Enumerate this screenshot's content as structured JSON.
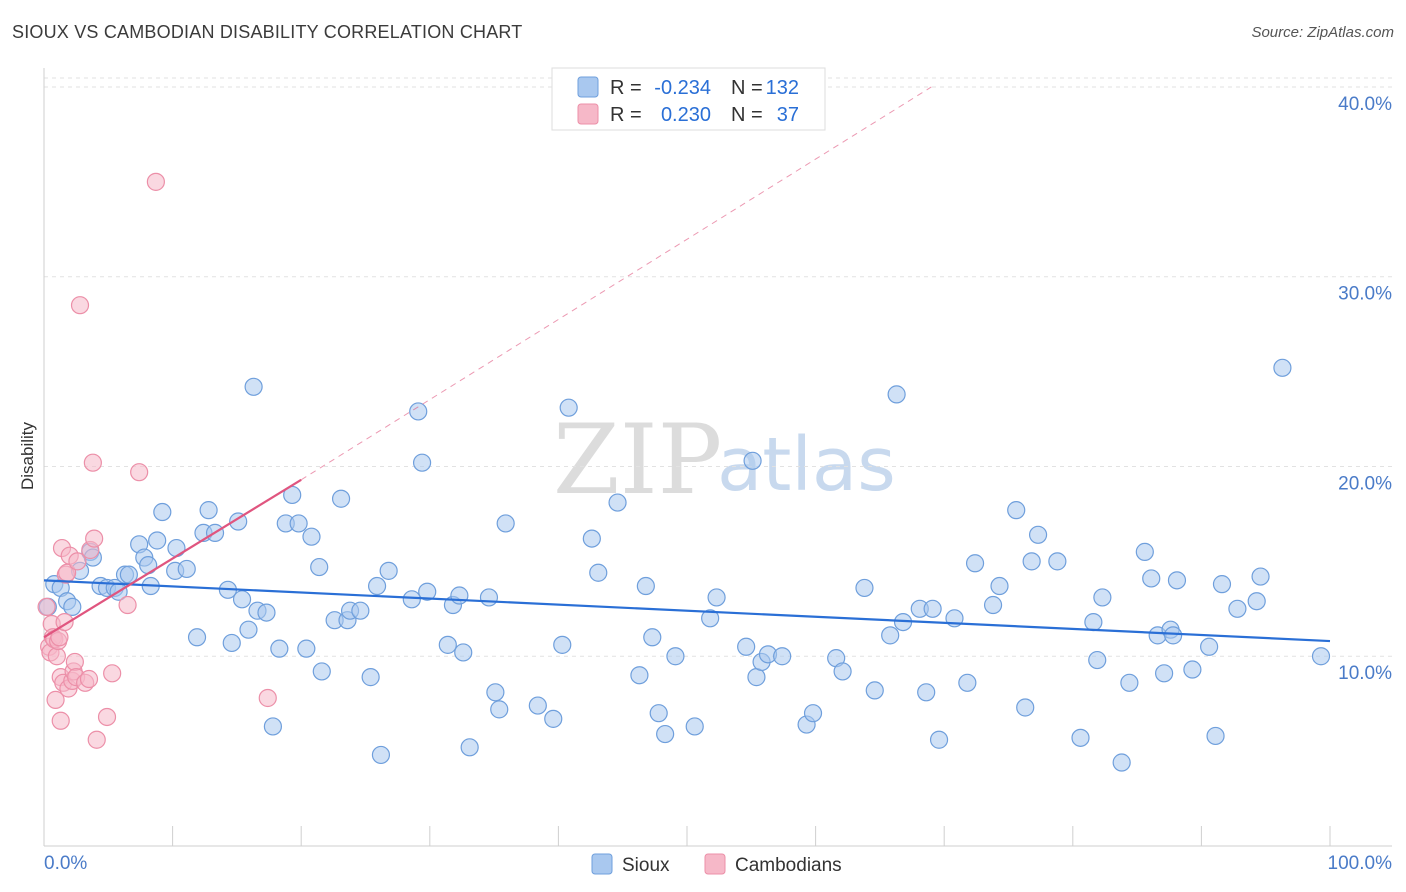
{
  "title": "SIOUX VS CAMBODIAN DISABILITY CORRELATION CHART",
  "source": "Source: ZipAtlas.com",
  "watermark": {
    "zip": "ZIP",
    "atlas": "atlas"
  },
  "legend": {
    "rows": [
      {
        "r_label": "R =",
        "r_value": "-0.234",
        "n_label": "N =",
        "n_value": "132"
      },
      {
        "r_label": "R =",
        "r_value": "0.230",
        "n_label": "N =",
        "n_value": "37"
      }
    ]
  },
  "bottom_legend": {
    "sioux": "Sioux",
    "cambodians": "Cambodians"
  },
  "colors": {
    "sioux_fill": "#a9c8ef",
    "sioux_stroke": "#6f9fdc",
    "sioux_line": "#2a6fd6",
    "camb_fill": "#f6b8c8",
    "camb_stroke": "#ec8fa8",
    "camb_line": "#e0557f"
  },
  "chart_data": {
    "type": "scatter",
    "title": "SIOUX VS CAMBODIAN DISABILITY CORRELATION CHART",
    "xlabel": "",
    "ylabel": "Disability",
    "xlim": [
      0,
      100
    ],
    "ylim": [
      0,
      41
    ],
    "x_tick_labels": [
      "0.0%",
      "100.0%"
    ],
    "y_ticks": [
      10,
      20,
      30,
      40
    ],
    "y_tick_labels": [
      "10.0%",
      "20.0%",
      "30.0%",
      "40.0%"
    ],
    "series": [
      {
        "name": "Sioux",
        "r": -0.234,
        "n": 132,
        "trend": {
          "x": [
            0,
            100
          ],
          "y": [
            14.0,
            10.8
          ]
        },
        "points": [
          [
            0.3,
            12.6
          ],
          [
            0.8,
            13.8
          ],
          [
            1.3,
            13.6
          ],
          [
            1.8,
            12.9
          ],
          [
            2.2,
            12.6
          ],
          [
            2.8,
            14.5
          ],
          [
            3.6,
            15.5
          ],
          [
            3.8,
            15.2
          ],
          [
            4.4,
            13.7
          ],
          [
            4.9,
            13.6
          ],
          [
            5.5,
            13.6
          ],
          [
            5.8,
            13.4
          ],
          [
            6.3,
            14.3
          ],
          [
            6.6,
            14.3
          ],
          [
            7.4,
            15.9
          ],
          [
            7.8,
            15.2
          ],
          [
            8.1,
            14.8
          ],
          [
            8.3,
            13.7
          ],
          [
            8.8,
            16.1
          ],
          [
            9.2,
            17.6
          ],
          [
            10.2,
            14.5
          ],
          [
            10.3,
            15.7
          ],
          [
            11.1,
            14.6
          ],
          [
            11.9,
            11.0
          ],
          [
            12.4,
            16.5
          ],
          [
            12.8,
            17.7
          ],
          [
            13.3,
            16.5
          ],
          [
            14.3,
            13.5
          ],
          [
            14.6,
            10.7
          ],
          [
            15.1,
            17.1
          ],
          [
            15.4,
            13.0
          ],
          [
            15.9,
            11.4
          ],
          [
            16.3,
            24.2
          ],
          [
            16.6,
            12.4
          ],
          [
            17.3,
            12.3
          ],
          [
            17.8,
            6.3
          ],
          [
            18.3,
            10.4
          ],
          [
            18.8,
            17.0
          ],
          [
            19.3,
            18.5
          ],
          [
            19.8,
            17.0
          ],
          [
            20.4,
            10.4
          ],
          [
            20.8,
            16.3
          ],
          [
            21.4,
            14.7
          ],
          [
            21.6,
            9.2
          ],
          [
            22.6,
            11.9
          ],
          [
            23.1,
            18.3
          ],
          [
            23.6,
            11.9
          ],
          [
            23.8,
            12.4
          ],
          [
            24.6,
            12.4
          ],
          [
            25.4,
            8.9
          ],
          [
            25.9,
            13.7
          ],
          [
            26.2,
            4.8
          ],
          [
            26.8,
            14.5
          ],
          [
            28.6,
            13.0
          ],
          [
            29.1,
            22.9
          ],
          [
            29.4,
            20.2
          ],
          [
            29.8,
            13.4
          ],
          [
            31.4,
            10.6
          ],
          [
            31.8,
            12.7
          ],
          [
            32.3,
            13.2
          ],
          [
            32.6,
            10.2
          ],
          [
            33.1,
            5.2
          ],
          [
            34.6,
            13.1
          ],
          [
            35.1,
            8.1
          ],
          [
            35.4,
            7.2
          ],
          [
            35.9,
            17.0
          ],
          [
            38.4,
            7.4
          ],
          [
            39.6,
            6.7
          ],
          [
            40.3,
            10.6
          ],
          [
            40.8,
            23.1
          ],
          [
            42.6,
            16.2
          ],
          [
            43.1,
            14.4
          ],
          [
            44.6,
            18.1
          ],
          [
            46.3,
            9.0
          ],
          [
            46.8,
            13.7
          ],
          [
            47.3,
            11.0
          ],
          [
            47.8,
            7.0
          ],
          [
            48.3,
            5.9
          ],
          [
            49.1,
            10.0
          ],
          [
            50.6,
            6.3
          ],
          [
            51.8,
            12.0
          ],
          [
            52.3,
            13.1
          ],
          [
            54.6,
            10.5
          ],
          [
            55.1,
            20.3
          ],
          [
            55.4,
            8.9
          ],
          [
            55.8,
            9.7
          ],
          [
            56.3,
            10.1
          ],
          [
            57.4,
            10.0
          ],
          [
            59.3,
            6.4
          ],
          [
            59.8,
            7.0
          ],
          [
            61.6,
            9.9
          ],
          [
            62.1,
            9.2
          ],
          [
            63.8,
            13.6
          ],
          [
            64.6,
            8.2
          ],
          [
            65.8,
            11.1
          ],
          [
            66.3,
            23.8
          ],
          [
            66.8,
            11.8
          ],
          [
            68.1,
            12.5
          ],
          [
            68.6,
            8.1
          ],
          [
            69.1,
            12.5
          ],
          [
            69.6,
            5.6
          ],
          [
            70.8,
            12.0
          ],
          [
            71.8,
            8.6
          ],
          [
            72.4,
            14.9
          ],
          [
            73.8,
            12.7
          ],
          [
            74.3,
            13.7
          ],
          [
            75.6,
            17.7
          ],
          [
            76.3,
            7.3
          ],
          [
            76.8,
            15.0
          ],
          [
            77.3,
            16.4
          ],
          [
            78.8,
            15.0
          ],
          [
            80.6,
            5.7
          ],
          [
            81.6,
            11.8
          ],
          [
            81.9,
            9.8
          ],
          [
            82.3,
            13.1
          ],
          [
            83.8,
            4.4
          ],
          [
            84.4,
            8.6
          ],
          [
            85.6,
            15.5
          ],
          [
            86.1,
            14.1
          ],
          [
            86.6,
            11.1
          ],
          [
            87.1,
            9.1
          ],
          [
            87.6,
            11.4
          ],
          [
            87.8,
            11.1
          ],
          [
            88.1,
            14.0
          ],
          [
            89.3,
            9.3
          ],
          [
            90.6,
            10.5
          ],
          [
            91.1,
            5.8
          ],
          [
            91.6,
            13.8
          ],
          [
            92.8,
            12.5
          ],
          [
            94.3,
            12.9
          ],
          [
            94.6,
            14.2
          ],
          [
            96.3,
            25.2
          ],
          [
            99.3,
            10.0
          ]
        ]
      },
      {
        "name": "Cambodians",
        "r": 0.23,
        "n": 37,
        "trend": {
          "x": [
            0,
            20
          ],
          "y": [
            11.0,
            19.3
          ]
        },
        "trend_extended": {
          "x": [
            20,
            69
          ],
          "y": [
            19.3,
            40.0
          ]
        },
        "points": [
          [
            0.4,
            10.5
          ],
          [
            0.5,
            10.2
          ],
          [
            0.6,
            11.7
          ],
          [
            0.7,
            11.0
          ],
          [
            0.8,
            10.9
          ],
          [
            0.9,
            7.7
          ],
          [
            1.0,
            10.0
          ],
          [
            1.1,
            10.8
          ],
          [
            1.2,
            11.0
          ],
          [
            1.3,
            8.9
          ],
          [
            1.3,
            6.6
          ],
          [
            1.4,
            15.7
          ],
          [
            1.5,
            8.6
          ],
          [
            1.6,
            11.8
          ],
          [
            1.7,
            14.3
          ],
          [
            1.8,
            14.4
          ],
          [
            1.9,
            8.3
          ],
          [
            2.0,
            15.3
          ],
          [
            2.2,
            8.7
          ],
          [
            2.3,
            9.2
          ],
          [
            2.4,
            9.7
          ],
          [
            2.5,
            8.9
          ],
          [
            2.6,
            15.0
          ],
          [
            2.8,
            28.5
          ],
          [
            3.2,
            8.6
          ],
          [
            3.5,
            8.8
          ],
          [
            3.6,
            15.6
          ],
          [
            3.8,
            20.2
          ],
          [
            3.9,
            16.2
          ],
          [
            4.1,
            5.6
          ],
          [
            4.9,
            6.8
          ],
          [
            5.3,
            9.1
          ],
          [
            6.5,
            12.7
          ],
          [
            7.4,
            19.7
          ],
          [
            8.7,
            35.0
          ],
          [
            17.4,
            7.8
          ],
          [
            0.2,
            12.6
          ]
        ]
      }
    ]
  }
}
